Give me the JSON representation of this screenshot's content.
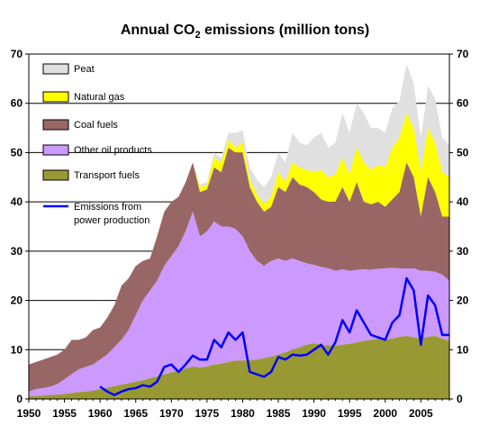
{
  "chart_data": {
    "type": "area",
    "title_prefix": "Annual CO",
    "title_sub": "2",
    "title_suffix": " emissions (million tons)",
    "xlabel": "",
    "ylabel": "",
    "xlim": [
      1950,
      2009
    ],
    "ylim": [
      0,
      70
    ],
    "x_ticks": [
      "1950",
      "1955",
      "1960",
      "1965",
      "1970",
      "1975",
      "1980",
      "1985",
      "1990",
      "1995",
      "2000",
      "2005"
    ],
    "y_ticks": [
      "0",
      "10",
      "20",
      "30",
      "40",
      "50",
      "60",
      "70"
    ],
    "grid": "horizontal",
    "legend_position": "top-left",
    "x": [
      1950,
      1951,
      1952,
      1953,
      1954,
      1955,
      1956,
      1957,
      1958,
      1959,
      1960,
      1961,
      1962,
      1963,
      1964,
      1965,
      1966,
      1967,
      1968,
      1969,
      1970,
      1971,
      1972,
      1973,
      1974,
      1975,
      1976,
      1977,
      1978,
      1979,
      1980,
      1981,
      1982,
      1983,
      1984,
      1985,
      1986,
      1987,
      1988,
      1989,
      1990,
      1991,
      1992,
      1993,
      1994,
      1995,
      1996,
      1997,
      1998,
      1999,
      2000,
      2001,
      2002,
      2003,
      2004,
      2005,
      2006,
      2007,
      2008,
      2009
    ],
    "series": [
      {
        "name": "Transport fuels",
        "color": "#999933",
        "values": [
          0.5,
          0.6,
          0.7,
          0.8,
          0.9,
          1.0,
          1.2,
          1.4,
          1.5,
          1.7,
          2.0,
          2.3,
          2.6,
          2.9,
          3.2,
          3.5,
          3.8,
          4.2,
          4.6,
          5.0,
          5.4,
          5.8,
          6.2,
          6.6,
          6.4,
          6.6,
          7.0,
          7.2,
          7.5,
          7.8,
          7.8,
          7.9,
          8.0,
          8.3,
          8.6,
          9.0,
          9.5,
          10.0,
          10.5,
          11.0,
          11.3,
          11.0,
          10.9,
          10.8,
          11.0,
          11.2,
          11.5,
          11.8,
          12.0,
          12.2,
          12.0,
          12.3,
          12.6,
          12.8,
          12.5,
          12.3,
          12.6,
          12.8,
          12.2,
          11.8
        ]
      },
      {
        "name": "Other oil products",
        "color": "#CC99FF",
        "values": [
          1.5,
          2.0,
          2.2,
          2.5,
          3.0,
          4.0,
          5.0,
          6.0,
          6.5,
          7.0,
          8.0,
          9.0,
          10.5,
          12.0,
          14.0,
          17.0,
          20.0,
          22.0,
          24.0,
          27.0,
          29.0,
          31.0,
          34.0,
          38.0,
          33.0,
          34.0,
          36.0,
          35.0,
          35.0,
          34.5,
          33.0,
          30.0,
          28.0,
          27.0,
          28.0,
          28.5,
          28.0,
          28.5,
          28.0,
          27.5,
          27.2,
          26.8,
          26.5,
          26.0,
          26.3,
          26.0,
          26.2,
          26.3,
          26.2,
          26.4,
          26.5,
          26.6,
          26.5,
          26.5,
          26.5,
          26.0,
          26.0,
          25.8,
          25.2,
          24.0
        ]
      },
      {
        "name": "Coal fuels",
        "color": "#996666",
        "values": [
          7.0,
          7.5,
          8.0,
          8.5,
          9.0,
          10.0,
          12.0,
          12.0,
          12.5,
          14.0,
          14.5,
          16.5,
          19.0,
          23.0,
          24.5,
          27.0,
          28.0,
          28.5,
          33.0,
          38.0,
          40.0,
          41.0,
          44.0,
          48.0,
          42.0,
          42.5,
          47.0,
          46.0,
          51.0,
          50.0,
          50.0,
          43.0,
          40.0,
          38.0,
          39.0,
          43.0,
          42.0,
          45.0,
          43.5,
          43.0,
          42.0,
          40.5,
          40.0,
          40.0,
          43.0,
          40.0,
          44.0,
          40.0,
          39.5,
          40.0,
          39.0,
          40.5,
          42.0,
          48.0,
          45.0,
          37.0,
          45.0,
          42.0,
          37.0,
          37.0
        ]
      },
      {
        "name": "Natural gas",
        "color": "#FFFF00",
        "values": [
          7.0,
          7.5,
          8.0,
          8.5,
          9.0,
          10.0,
          12.0,
          12.0,
          12.5,
          14.0,
          14.5,
          16.5,
          19.0,
          23.0,
          24.5,
          27.0,
          28.0,
          28.5,
          33.0,
          38.0,
          40.0,
          41.0,
          44.0,
          48.0,
          43.0,
          43.5,
          49.0,
          48.0,
          52.5,
          51.0,
          52.0,
          44.5,
          41.5,
          39.5,
          41.0,
          46.0,
          44.0,
          48.0,
          47.0,
          46.5,
          46.0,
          46.5,
          45.0,
          45.5,
          49.0,
          45.5,
          51.0,
          48.0,
          46.5,
          47.5,
          47.0,
          51.0,
          53.0,
          58.0,
          55.0,
          46.0,
          55.0,
          52.0,
          46.0,
          45.0
        ]
      },
      {
        "name": "Peat",
        "color": "#E0E0E0",
        "values": [
          7.0,
          7.5,
          8.0,
          8.5,
          9.0,
          10.0,
          12.0,
          12.0,
          12.5,
          14.0,
          14.5,
          16.5,
          19.0,
          23.0,
          24.5,
          27.0,
          28.0,
          28.5,
          33.0,
          38.0,
          40.0,
          41.0,
          44.0,
          48.0,
          43.5,
          44.0,
          50.0,
          49.0,
          54.0,
          54.0,
          54.5,
          47.0,
          44.5,
          43.0,
          45.0,
          50.0,
          48.0,
          54.0,
          52.0,
          51.5,
          53.0,
          54.0,
          51.0,
          52.0,
          58.0,
          54.0,
          60.0,
          58.0,
          55.0,
          55.0,
          54.0,
          59.0,
          60.5,
          68.0,
          64.0,
          53.0,
          63.5,
          61.0,
          53.0,
          51.5
        ]
      }
    ],
    "line_series": {
      "name": "Emissions from power production",
      "color": "#0000FF",
      "x": [
        1960,
        1961,
        1962,
        1963,
        1964,
        1965,
        1966,
        1967,
        1968,
        1969,
        1970,
        1971,
        1972,
        1973,
        1974,
        1975,
        1976,
        1977,
        1978,
        1979,
        1980,
        1981,
        1982,
        1983,
        1984,
        1985,
        1986,
        1987,
        1988,
        1989,
        1990,
        1991,
        1992,
        1993,
        1994,
        1995,
        1996,
        1997,
        1998,
        1999,
        2000,
        2001,
        2002,
        2003,
        2004,
        2005,
        2006,
        2007,
        2008,
        2009
      ],
      "values": [
        2.5,
        1.5,
        0.8,
        1.5,
        2.0,
        2.2,
        2.8,
        2.5,
        3.5,
        6.5,
        7.0,
        5.5,
        7.0,
        8.8,
        8.0,
        8.0,
        12.0,
        10.5,
        13.5,
        12.0,
        13.5,
        5.5,
        5.0,
        4.5,
        5.5,
        8.5,
        8.0,
        9.0,
        8.8,
        9.0,
        10.0,
        11.0,
        9.0,
        11.5,
        16.0,
        13.5,
        18.0,
        15.5,
        13.0,
        12.5,
        12.0,
        15.5,
        17.0,
        24.5,
        22.0,
        11.0,
        21.0,
        19.0,
        13.0,
        13.0
      ]
    },
    "legend": [
      {
        "label": "Peat",
        "series": "Peat"
      },
      {
        "label": "Natural gas",
        "series": "Natural gas"
      },
      {
        "label": "Coal fuels",
        "series": "Coal fuels"
      },
      {
        "label": "Other oil products",
        "series": "Other oil products"
      },
      {
        "label": "Transport fuels",
        "series": "Transport fuels"
      },
      {
        "label": "Emissions from",
        "label2": "power production",
        "series": "Emissions from power production"
      }
    ]
  }
}
